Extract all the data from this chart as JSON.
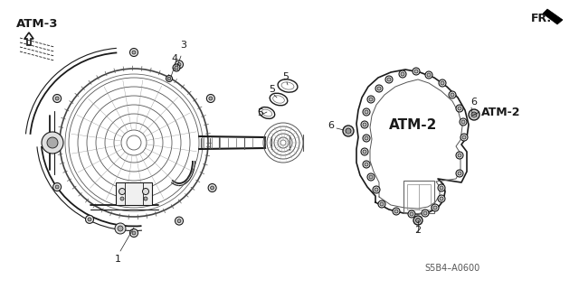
{
  "bg_color": "#ffffff",
  "fig_width": 6.4,
  "fig_height": 3.2,
  "dpi": 100,
  "part_label_atm3": "ATM-3",
  "part_label_fr": "FR.",
  "part_label_atm2_left": "ATM-2",
  "part_label_atm2_right": "ATM-2",
  "footer": "S5B4–A0600",
  "line_color": "#1a1a1a",
  "gray_color": "#888888",
  "dark_gray": "#333333"
}
